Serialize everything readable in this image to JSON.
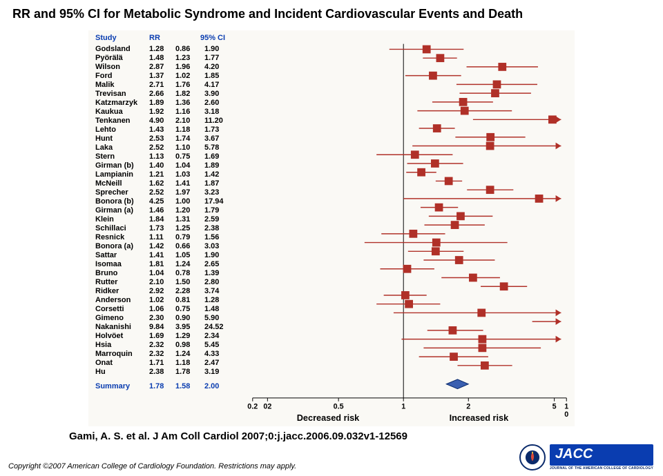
{
  "title": "RR and 95% CI for Metabolic Syndrome and Incident Cardiovascular Events and Death",
  "citation": "Gami, A. S. et al. J Am Coll Cardiol 2007;0:j.jacc.2006.09.032v1-12569",
  "copyright": "Copyright ©2007 American College of Cardiology Foundation. Restrictions may apply.",
  "logo": {
    "text": "JACC",
    "sub": "JOURNAL OF THE AMERICAN COLLEGE OF CARDIOLOGY"
  },
  "columns": [
    "Study",
    "RR",
    "95% CI"
  ],
  "colors": {
    "marker": "#b03028",
    "line": "#b03028",
    "diamond_fill": "#3a5fb0",
    "diamond_stroke": "#0a2a6b",
    "axis": "#000000",
    "bg": "#faf9f5"
  },
  "marker_size": 12,
  "line_width": 1.5,
  "arrow_size": 5,
  "plot": {
    "scale": "log",
    "xmin": 0.2,
    "xmax": 5,
    "clip_max": 5,
    "ticks": [
      {
        "v": 0.2,
        "label": "0.2"
      },
      {
        "v": 0.2,
        "label": "02",
        "offset": 22
      },
      {
        "v": 0.5,
        "label": "0.5"
      },
      {
        "v": 1,
        "label": "1"
      },
      {
        "v": 2,
        "label": "2"
      },
      {
        "v": 5,
        "label": "5"
      },
      {
        "v": 10,
        "label": "1\n0",
        "outside": true
      }
    ],
    "labels": {
      "left": "Decreased risk",
      "right": "Increased risk"
    }
  },
  "studies": [
    {
      "name": "Godsland",
      "rr": 1.28,
      "lo": 0.86,
      "hi": 1.9
    },
    {
      "name": "Pyörälä",
      "rr": 1.48,
      "lo": 1.23,
      "hi": 1.77
    },
    {
      "name": "Wilson",
      "rr": 2.87,
      "lo": 1.96,
      "hi": 4.2
    },
    {
      "name": "Ford",
      "rr": 1.37,
      "lo": 1.02,
      "hi": 1.85
    },
    {
      "name": "Malik",
      "rr": 2.71,
      "lo": 1.76,
      "hi": 4.17
    },
    {
      "name": "Trevisan",
      "rr": 2.66,
      "lo": 1.82,
      "hi": 3.9
    },
    {
      "name": "Katzmarzyk",
      "rr": 1.89,
      "lo": 1.36,
      "hi": 2.6
    },
    {
      "name": "Kaukua",
      "rr": 1.92,
      "lo": 1.16,
      "hi": 3.18
    },
    {
      "name": "Tenkanen",
      "rr": 4.9,
      "lo": 2.1,
      "hi": 11.2
    },
    {
      "name": "Lehto",
      "rr": 1.43,
      "lo": 1.18,
      "hi": 1.73
    },
    {
      "name": "Hunt",
      "rr": 2.53,
      "lo": 1.74,
      "hi": 3.67
    },
    {
      "name": "Laka",
      "rr": 2.52,
      "lo": 1.1,
      "hi": 5.78
    },
    {
      "name": "Stern",
      "rr": 1.13,
      "lo": 0.75,
      "hi": 1.69
    },
    {
      "name": "Girman (b)",
      "rr": 1.4,
      "lo": 1.04,
      "hi": 1.89
    },
    {
      "name": "Lampianin",
      "rr": 1.21,
      "lo": 1.03,
      "hi": 1.42
    },
    {
      "name": "McNeill",
      "rr": 1.62,
      "lo": 1.41,
      "hi": 1.87
    },
    {
      "name": "Sprecher",
      "rr": 2.52,
      "lo": 1.97,
      "hi": 3.23
    },
    {
      "name": "Bonora (b)",
      "rr": 4.25,
      "lo": 1.0,
      "hi": 17.94
    },
    {
      "name": "Girman (a)",
      "rr": 1.46,
      "lo": 1.2,
      "hi": 1.79
    },
    {
      "name": "Klein",
      "rr": 1.84,
      "lo": 1.31,
      "hi": 2.59
    },
    {
      "name": "Schillaci",
      "rr": 1.73,
      "lo": 1.25,
      "hi": 2.38
    },
    {
      "name": "Resnick",
      "rr": 1.11,
      "lo": 0.79,
      "hi": 1.56
    },
    {
      "name": "Bonora (a)",
      "rr": 1.42,
      "lo": 0.66,
      "hi": 3.03
    },
    {
      "name": "Sattar",
      "rr": 1.41,
      "lo": 1.05,
      "hi": 1.9
    },
    {
      "name": "Isomaa",
      "rr": 1.81,
      "lo": 1.24,
      "hi": 2.65
    },
    {
      "name": "Bruno",
      "rr": 1.04,
      "lo": 0.78,
      "hi": 1.39
    },
    {
      "name": "Rutter",
      "rr": 2.1,
      "lo": 1.5,
      "hi": 2.8
    },
    {
      "name": "Ridker",
      "rr": 2.92,
      "lo": 2.28,
      "hi": 3.74
    },
    {
      "name": "Anderson",
      "rr": 1.02,
      "lo": 0.81,
      "hi": 1.28
    },
    {
      "name": "Corsetti",
      "rr": 1.06,
      "lo": 0.75,
      "hi": 1.48
    },
    {
      "name": "Gimeno",
      "rr": 2.3,
      "lo": 0.9,
      "hi": 5.9
    },
    {
      "name": "Nakanishi",
      "rr": 9.84,
      "lo": 3.95,
      "hi": 24.52
    },
    {
      "name": "Holvöet",
      "rr": 1.69,
      "lo": 1.29,
      "hi": 2.34
    },
    {
      "name": "Hsia",
      "rr": 2.32,
      "lo": 0.98,
      "hi": 5.45
    },
    {
      "name": "Marroquin",
      "rr": 2.32,
      "lo": 1.24,
      "hi": 4.33
    },
    {
      "name": "Onat",
      "rr": 1.71,
      "lo": 1.18,
      "hi": 2.47
    },
    {
      "name": "Hu",
      "rr": 2.38,
      "lo": 1.78,
      "hi": 3.19
    }
  ],
  "summary": {
    "label": "Summary",
    "rr": "1.78",
    "lo": "1.58",
    "hi": "2.00",
    "rr_n": 1.78,
    "lo_n": 1.58,
    "hi_n": 2.0
  }
}
